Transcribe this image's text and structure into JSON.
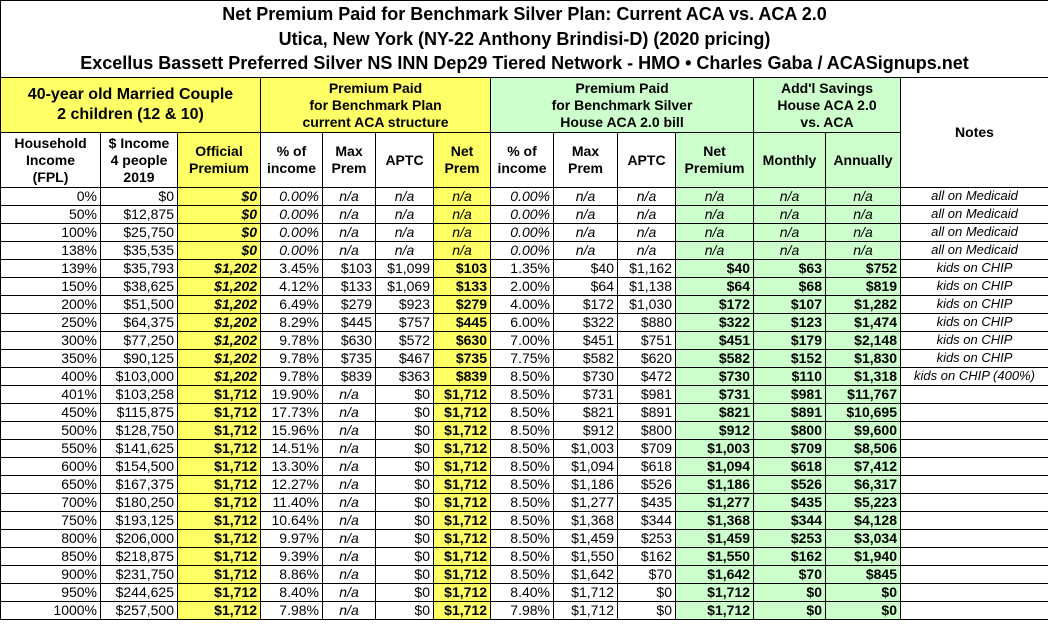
{
  "title": {
    "lines": [
      "Net Premium Paid for Benchmark Silver Plan: Current ACA vs. ACA 2.0",
      "Utica, New York (NY-22 Anthony Brindisi-D) (2020 pricing)",
      "Excellus Bassett Preferred Silver NS INN Dep29 Tiered Network - HMO • Charles Gaba / ACASignups.net"
    ]
  },
  "groups": [
    {
      "lines": [
        "40-year old Married Couple",
        "2 children (12 & 10)"
      ]
    },
    {
      "lines": [
        "Premium Paid",
        "for Benchmark Plan",
        "current ACA structure"
      ]
    },
    {
      "lines": [
        "Premium Paid",
        "for Benchmark Silver",
        "House ACA 2.0 bill"
      ]
    },
    {
      "lines": [
        "Add'l Savings",
        "House ACA 2.0",
        "vs. ACA"
      ]
    },
    {
      "lines": [
        "Notes"
      ]
    }
  ],
  "table": {
    "columns": [
      {
        "lines": [
          "Household",
          "Income",
          "(FPL)"
        ]
      },
      {
        "lines": [
          "$ Income",
          "4 people",
          "2019"
        ]
      },
      {
        "lines": [
          "Official",
          "Premium"
        ]
      },
      {
        "lines": [
          "% of",
          "income"
        ]
      },
      {
        "lines": [
          "Max",
          "Prem"
        ]
      },
      {
        "lines": [
          "APTC"
        ]
      },
      {
        "lines": [
          "Net",
          "Prem"
        ]
      },
      {
        "lines": [
          "% of",
          "income"
        ]
      },
      {
        "lines": [
          "Max",
          "Prem"
        ]
      },
      {
        "lines": [
          "APTC"
        ]
      },
      {
        "lines": [
          "Net",
          "Premium"
        ]
      },
      {
        "lines": [
          "Monthly"
        ]
      },
      {
        "lines": [
          "Annually"
        ]
      }
    ],
    "rows": [
      [
        "0%",
        "$0",
        "$0",
        "0.00%",
        "n/a",
        "n/a",
        "n/a",
        "0.00%",
        "n/a",
        "n/a",
        "n/a",
        "n/a",
        "n/a",
        "all on Medicaid"
      ],
      [
        "50%",
        "$12,875",
        "$0",
        "0.00%",
        "n/a",
        "n/a",
        "n/a",
        "0.00%",
        "n/a",
        "n/a",
        "n/a",
        "n/a",
        "n/a",
        "all on Medicaid"
      ],
      [
        "100%",
        "$25,750",
        "$0",
        "0.00%",
        "n/a",
        "n/a",
        "n/a",
        "0.00%",
        "n/a",
        "n/a",
        "n/a",
        "n/a",
        "n/a",
        "all on Medicaid"
      ],
      [
        "138%",
        "$35,535",
        "$0",
        "0.00%",
        "n/a",
        "n/a",
        "n/a",
        "0.00%",
        "n/a",
        "n/a",
        "n/a",
        "n/a",
        "n/a",
        "all on Medicaid"
      ],
      [
        "139%",
        "$35,793",
        "$1,202",
        "3.45%",
        "$103",
        "$1,099",
        "$103",
        "1.35%",
        "$40",
        "$1,162",
        "$40",
        "$63",
        "$752",
        "kids on CHIP"
      ],
      [
        "150%",
        "$38,625",
        "$1,202",
        "4.12%",
        "$133",
        "$1,069",
        "$133",
        "2.00%",
        "$64",
        "$1,138",
        "$64",
        "$68",
        "$819",
        "kids on CHIP"
      ],
      [
        "200%",
        "$51,500",
        "$1,202",
        "6.49%",
        "$279",
        "$923",
        "$279",
        "4.00%",
        "$172",
        "$1,030",
        "$172",
        "$107",
        "$1,282",
        "kids on CHIP"
      ],
      [
        "250%",
        "$64,375",
        "$1,202",
        "8.29%",
        "$445",
        "$757",
        "$445",
        "6.00%",
        "$322",
        "$880",
        "$322",
        "$123",
        "$1,474",
        "kids on CHIP"
      ],
      [
        "300%",
        "$77,250",
        "$1,202",
        "9.78%",
        "$630",
        "$572",
        "$630",
        "7.00%",
        "$451",
        "$751",
        "$451",
        "$179",
        "$2,148",
        "kids on CHIP"
      ],
      [
        "350%",
        "$90,125",
        "$1,202",
        "9.78%",
        "$735",
        "$467",
        "$735",
        "7.75%",
        "$582",
        "$620",
        "$582",
        "$152",
        "$1,830",
        "kids on CHIP"
      ],
      [
        "400%",
        "$103,000",
        "$1,202",
        "9.78%",
        "$839",
        "$363",
        "$839",
        "8.50%",
        "$730",
        "$472",
        "$730",
        "$110",
        "$1,318",
        "kids on CHIP (400%)"
      ],
      [
        "401%",
        "$103,258",
        "$1,712",
        "19.90%",
        "n/a",
        "$0",
        "$1,712",
        "8.50%",
        "$731",
        "$981",
        "$731",
        "$981",
        "$11,767"
      ],
      [
        "450%",
        "$115,875",
        "$1,712",
        "17.73%",
        "n/a",
        "$0",
        "$1,712",
        "8.50%",
        "$821",
        "$891",
        "$821",
        "$891",
        "$10,695"
      ],
      [
        "500%",
        "$128,750",
        "$1,712",
        "15.96%",
        "n/a",
        "$0",
        "$1,712",
        "8.50%",
        "$912",
        "$800",
        "$912",
        "$800",
        "$9,600"
      ],
      [
        "550%",
        "$141,625",
        "$1,712",
        "14.51%",
        "n/a",
        "$0",
        "$1,712",
        "8.50%",
        "$1,003",
        "$709",
        "$1,003",
        "$709",
        "$8,506"
      ],
      [
        "600%",
        "$154,500",
        "$1,712",
        "13.30%",
        "n/a",
        "$0",
        "$1,712",
        "8.50%",
        "$1,094",
        "$618",
        "$1,094",
        "$618",
        "$7,412"
      ],
      [
        "650%",
        "$167,375",
        "$1,712",
        "12.27%",
        "n/a",
        "$0",
        "$1,712",
        "8.50%",
        "$1,186",
        "$526",
        "$1,186",
        "$526",
        "$6,317"
      ],
      [
        "700%",
        "$180,250",
        "$1,712",
        "11.40%",
        "n/a",
        "$0",
        "$1,712",
        "8.50%",
        "$1,277",
        "$435",
        "$1,277",
        "$435",
        "$5,223"
      ],
      [
        "750%",
        "$193,125",
        "$1,712",
        "10.64%",
        "n/a",
        "$0",
        "$1,712",
        "8.50%",
        "$1,368",
        "$344",
        "$1,368",
        "$344",
        "$4,128"
      ],
      [
        "800%",
        "$206,000",
        "$1,712",
        "9.97%",
        "n/a",
        "$0",
        "$1,712",
        "8.50%",
        "$1,459",
        "$253",
        "$1,459",
        "$253",
        "$3,034"
      ],
      [
        "850%",
        "$218,875",
        "$1,712",
        "9.39%",
        "n/a",
        "$0",
        "$1,712",
        "8.50%",
        "$1,550",
        "$162",
        "$1,550",
        "$162",
        "$1,940"
      ],
      [
        "900%",
        "$231,750",
        "$1,712",
        "8.86%",
        "n/a",
        "$0",
        "$1,712",
        "8.50%",
        "$1,642",
        "$70",
        "$1,642",
        "$70",
        "$845"
      ],
      [
        "950%",
        "$244,625",
        "$1,712",
        "8.40%",
        "n/a",
        "$0",
        "$1,712",
        "8.40%",
        "$1,712",
        "$0",
        "$1,712",
        "$0",
        "$0"
      ],
      [
        "1000%",
        "$257,500",
        "$1,712",
        "7.98%",
        "n/a",
        "$0",
        "$1,712",
        "7.98%",
        "$1,712",
        "$0",
        "$1,712",
        "$0",
        "$0"
      ]
    ]
  }
}
